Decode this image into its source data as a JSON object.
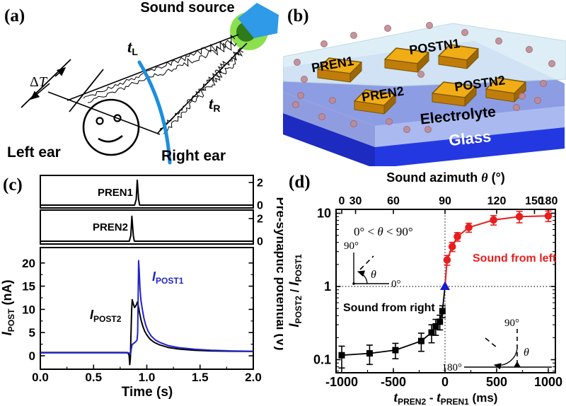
{
  "panel_a": {
    "tag": "(a)",
    "sound_source_label": "Sound source",
    "t_symbol": "t",
    "left_sub": "L",
    "right_sub": "R",
    "delta_T_sym": "Δ",
    "delta_T_letter": "T",
    "left_ear_label": "Left ear",
    "right_ear_label": "Right ear",
    "colors": {
      "wavefront_arc": "#1d8ede",
      "speaker": "#2e9ae8",
      "halo_outer": "#8ce04e",
      "halo_inner": "#2f7a19"
    }
  },
  "panel_b": {
    "tag": "(b)",
    "electrode_labels": {
      "pren1": "PREN1",
      "postn1": "POSTN1",
      "pren2": "PREN2",
      "postn2": "POSTN2"
    },
    "electrolyte_label": "Electrolyte",
    "glass_label": "Glass",
    "colors": {
      "cover": "#daecf6",
      "electrolyte_top": "#8d9de4",
      "electrolyte_front": "#aab9f0",
      "electrolyte_left": "#8f9de0",
      "glass_front": "#2438e2",
      "glass_left": "#1d2bc0",
      "electrode_top": "#f0ad15",
      "electrode_front": "#c07d0a",
      "electrode_side": "#9c6807",
      "ion": "#c28a92",
      "ion_edge": "#9c6a72"
    }
  },
  "panel_c": {
    "tag": "(c)"
  },
  "panel_d": {
    "tag": "(d)"
  },
  "chart_data": [
    {
      "type": "line",
      "panel": "c",
      "xlabel": "Time (s)",
      "xlim": [
        0,
        2
      ],
      "xticks": [
        0,
        0.5,
        1,
        1.5,
        2
      ],
      "xtick_labels": [
        "0.0",
        "0.5",
        "1.0",
        "1.5",
        "2.0"
      ],
      "x_minor_step": 0.25,
      "left_axis": {
        "label_main": "I",
        "label_sub": "POST",
        "label_rest": " (nA)"
      },
      "right_axis": {
        "label": "Pre-synaptic potential (V)"
      },
      "subpanels": [
        {
          "name": "pren1",
          "label": "PREN1",
          "ylim": [
            -0.35,
            2.5
          ],
          "yticks": [
            2,
            0
          ],
          "series": [
            {
              "name": "pren1-pulse",
              "color": "#000000",
              "points": [
                [
                  0,
                  0
                ],
                [
                  0.885,
                  0
                ],
                [
                  0.9,
                  0.5
                ],
                [
                  0.91,
                  2.2
                ],
                [
                  0.923,
                  0.5
                ],
                [
                  0.933,
                  0
                ],
                [
                  2,
                  0
                ]
              ]
            }
          ]
        },
        {
          "name": "pren2",
          "label": "PREN2",
          "ylim": [
            -0.35,
            2.5
          ],
          "yticks": [
            2,
            0
          ],
          "series": [
            {
              "name": "pren2-pulse",
              "color": "#000000",
              "points": [
                [
                  0,
                  0
                ],
                [
                  0.835,
                  0
                ],
                [
                  0.85,
                  0.5
                ],
                [
                  0.86,
                  2.2
                ],
                [
                  0.873,
                  0.5
                ],
                [
                  0.883,
                  0
                ],
                [
                  2,
                  0
                ]
              ]
            }
          ]
        },
        {
          "name": "ipost",
          "ylim": [
            -2.9,
            23.3
          ],
          "yticks": [
            0,
            5,
            10,
            15,
            20
          ],
          "y_minor_step": 2.5,
          "series": [
            {
              "name": "ipost2",
              "color": "#000000",
              "label_main": "I",
              "label_sub": "POST2",
              "points": [
                [
                  0,
                  0.7
                ],
                [
                  0.4,
                  0.7
                ],
                [
                  0.78,
                  0.7
                ],
                [
                  0.82,
                  0.68
                ],
                [
                  0.833,
                  0.2
                ],
                [
                  0.84,
                  -1.9
                ],
                [
                  0.846,
                  -0.5
                ],
                [
                  0.852,
                  5
                ],
                [
                  0.858,
                  10
                ],
                [
                  0.863,
                  12.1
                ],
                [
                  0.872,
                  11.3
                ],
                [
                  0.885,
                  10.4
                ],
                [
                  0.9,
                  10.9
                ],
                [
                  0.912,
                  11.6
                ],
                [
                  0.92,
                  10.8
                ],
                [
                  0.932,
                  9.2
                ],
                [
                  0.945,
                  7.8
                ],
                [
                  0.962,
                  6.4
                ],
                [
                  0.98,
                  5.3
                ],
                [
                  1.0,
                  4.5
                ],
                [
                  1.03,
                  3.6
                ],
                [
                  1.07,
                  2.9
                ],
                [
                  1.12,
                  2.35
                ],
                [
                  1.2,
                  1.8
                ],
                [
                  1.3,
                  1.45
                ],
                [
                  1.45,
                  1.18
                ],
                [
                  1.6,
                  1.05
                ],
                [
                  1.8,
                  0.97
                ],
                [
                  2,
                  0.93
                ]
              ]
            },
            {
              "name": "ipost1",
              "color": "#2323cc",
              "label_main": "I",
              "label_sub": "POST1",
              "points": [
                [
                  0,
                  0.62
                ],
                [
                  0.4,
                  0.62
                ],
                [
                  0.8,
                  0.62
                ],
                [
                  0.838,
                  0.6
                ],
                [
                  0.848,
                  0.35
                ],
                [
                  0.855,
                  1.6
                ],
                [
                  0.862,
                  2.4
                ],
                [
                  0.878,
                  2.7
                ],
                [
                  0.895,
                  3.0
                ],
                [
                  0.908,
                  3.4
                ],
                [
                  0.914,
                  5
                ],
                [
                  0.919,
                  13
                ],
                [
                  0.923,
                  20.5
                ],
                [
                  0.928,
                  18.5
                ],
                [
                  0.936,
                  14.5
                ],
                [
                  0.945,
                  12
                ],
                [
                  0.958,
                  10
                ],
                [
                  0.972,
                  8.2
                ],
                [
                  0.99,
                  6.6
                ],
                [
                  1.01,
                  5.4
                ],
                [
                  1.04,
                  4.3
                ],
                [
                  1.08,
                  3.4
                ],
                [
                  1.13,
                  2.8
                ],
                [
                  1.2,
                  2.2
                ],
                [
                  1.3,
                  1.75
                ],
                [
                  1.45,
                  1.4
                ],
                [
                  1.6,
                  1.2
                ],
                [
                  1.8,
                  1.05
                ],
                [
                  2,
                  0.98
                ]
              ]
            }
          ]
        }
      ]
    },
    {
      "type": "scatter",
      "panel": "d",
      "top_axis": {
        "title_pre": "Sound azimuth ",
        "title_theta": "θ",
        "title_post": " (°)",
        "ticks": [
          0,
          30,
          60,
          90,
          120,
          150,
          180
        ],
        "tick_labels": [
          "0",
          "30",
          "60",
          "90",
          "120",
          "150",
          "180"
        ]
      },
      "xlabel_parts": {
        "t1": "t",
        "s1": "PREN2",
        "mid": " - ",
        "t2": "t",
        "s2": "PREN1",
        "rest": " (ms)"
      },
      "ylabel_parts": {
        "i1": "I",
        "s1": "POST2",
        "mid": " / ",
        "i2": "I",
        "s2": "POST1"
      },
      "xlim": [
        -1055,
        1068
      ],
      "xticks": [
        -1000,
        -500,
        0,
        500,
        1000
      ],
      "xtick_labels": [
        "-1000",
        "-500",
        "0",
        "500",
        "1000"
      ],
      "x_minor_step": 250,
      "ylog_lim": [
        0.066,
        11.3
      ],
      "yticks": [
        0.1,
        1,
        10
      ],
      "ytick_labels": [
        "0.1",
        "1",
        "10"
      ],
      "y_minor_ticks": [
        0.07,
        0.08,
        0.09,
        0.2,
        0.3,
        0.4,
        0.5,
        0.6,
        0.7,
        0.8,
        0.9,
        2,
        3,
        4,
        5,
        6,
        7,
        8,
        9
      ],
      "ref_lines": {
        "x": 0,
        "y": 1
      },
      "series": [
        {
          "name": "sound-from-right",
          "marker": "square",
          "color": "#000000",
          "x": [
            -1000,
            -730,
            -480,
            -230,
            -130,
            -90,
            -50,
            -25
          ],
          "y": [
            0.115,
            0.122,
            0.135,
            0.18,
            0.235,
            0.285,
            0.33,
            0.46
          ],
          "yerr": [
            0.038,
            0.036,
            0.032,
            0.05,
            0.065,
            0.07,
            0.075,
            0.085
          ]
        },
        {
          "name": "sound-from-left",
          "marker": "circle",
          "color": "#e81e1e",
          "x": [
            20,
            70,
            120,
            230,
            470,
            720,
            1000
          ],
          "y": [
            2.3,
            3.5,
            4.8,
            6.4,
            8.1,
            9.0,
            9.2
          ],
          "yerr": [
            0.35,
            0.5,
            0.65,
            0.9,
            1.2,
            1.6,
            1.5
          ]
        },
        {
          "name": "coincident",
          "marker": "triangle",
          "color": "#1a1acc",
          "x": [
            0
          ],
          "y": [
            1
          ],
          "yerr": [
            0
          ]
        }
      ],
      "annotations": {
        "range_pre": "0° < ",
        "range_theta": "θ",
        "range_post": " < 90°",
        "sound_right": "Sound from right",
        "sound_left": "Sound from left",
        "deg90": "90°",
        "deg0": "0°",
        "deg180": "180°",
        "theta": "θ"
      }
    }
  ]
}
